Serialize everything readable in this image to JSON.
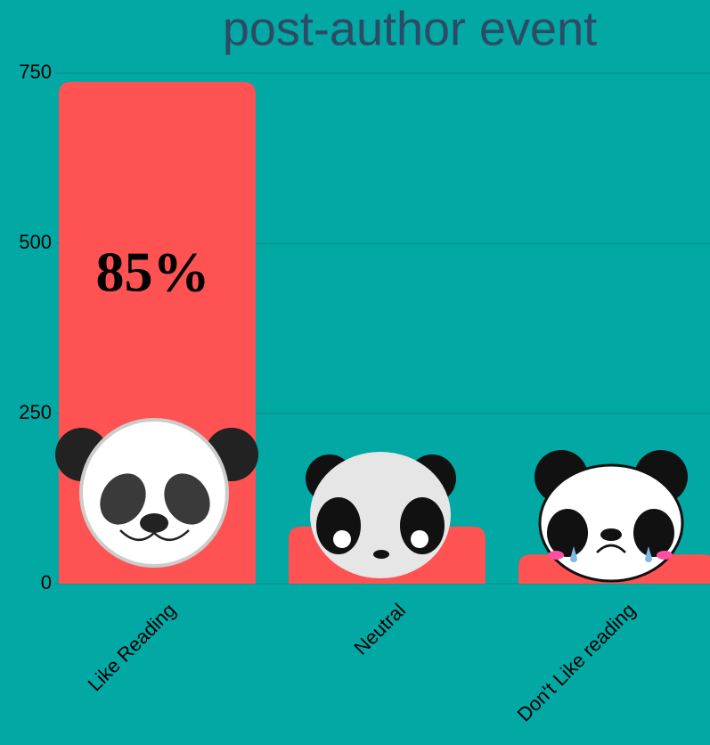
{
  "chart_data": {
    "type": "bar",
    "title": "post-author event",
    "categories": [
      "Like Reading",
      "Neutral",
      "Don't Like reading"
    ],
    "values": [
      737,
      84,
      43
    ],
    "color": "#ff5252",
    "annotations": [
      "85%"
    ],
    "ylim": [
      0,
      750
    ],
    "yticks": [
      0,
      250,
      500,
      750
    ],
    "grid": true
  }
}
